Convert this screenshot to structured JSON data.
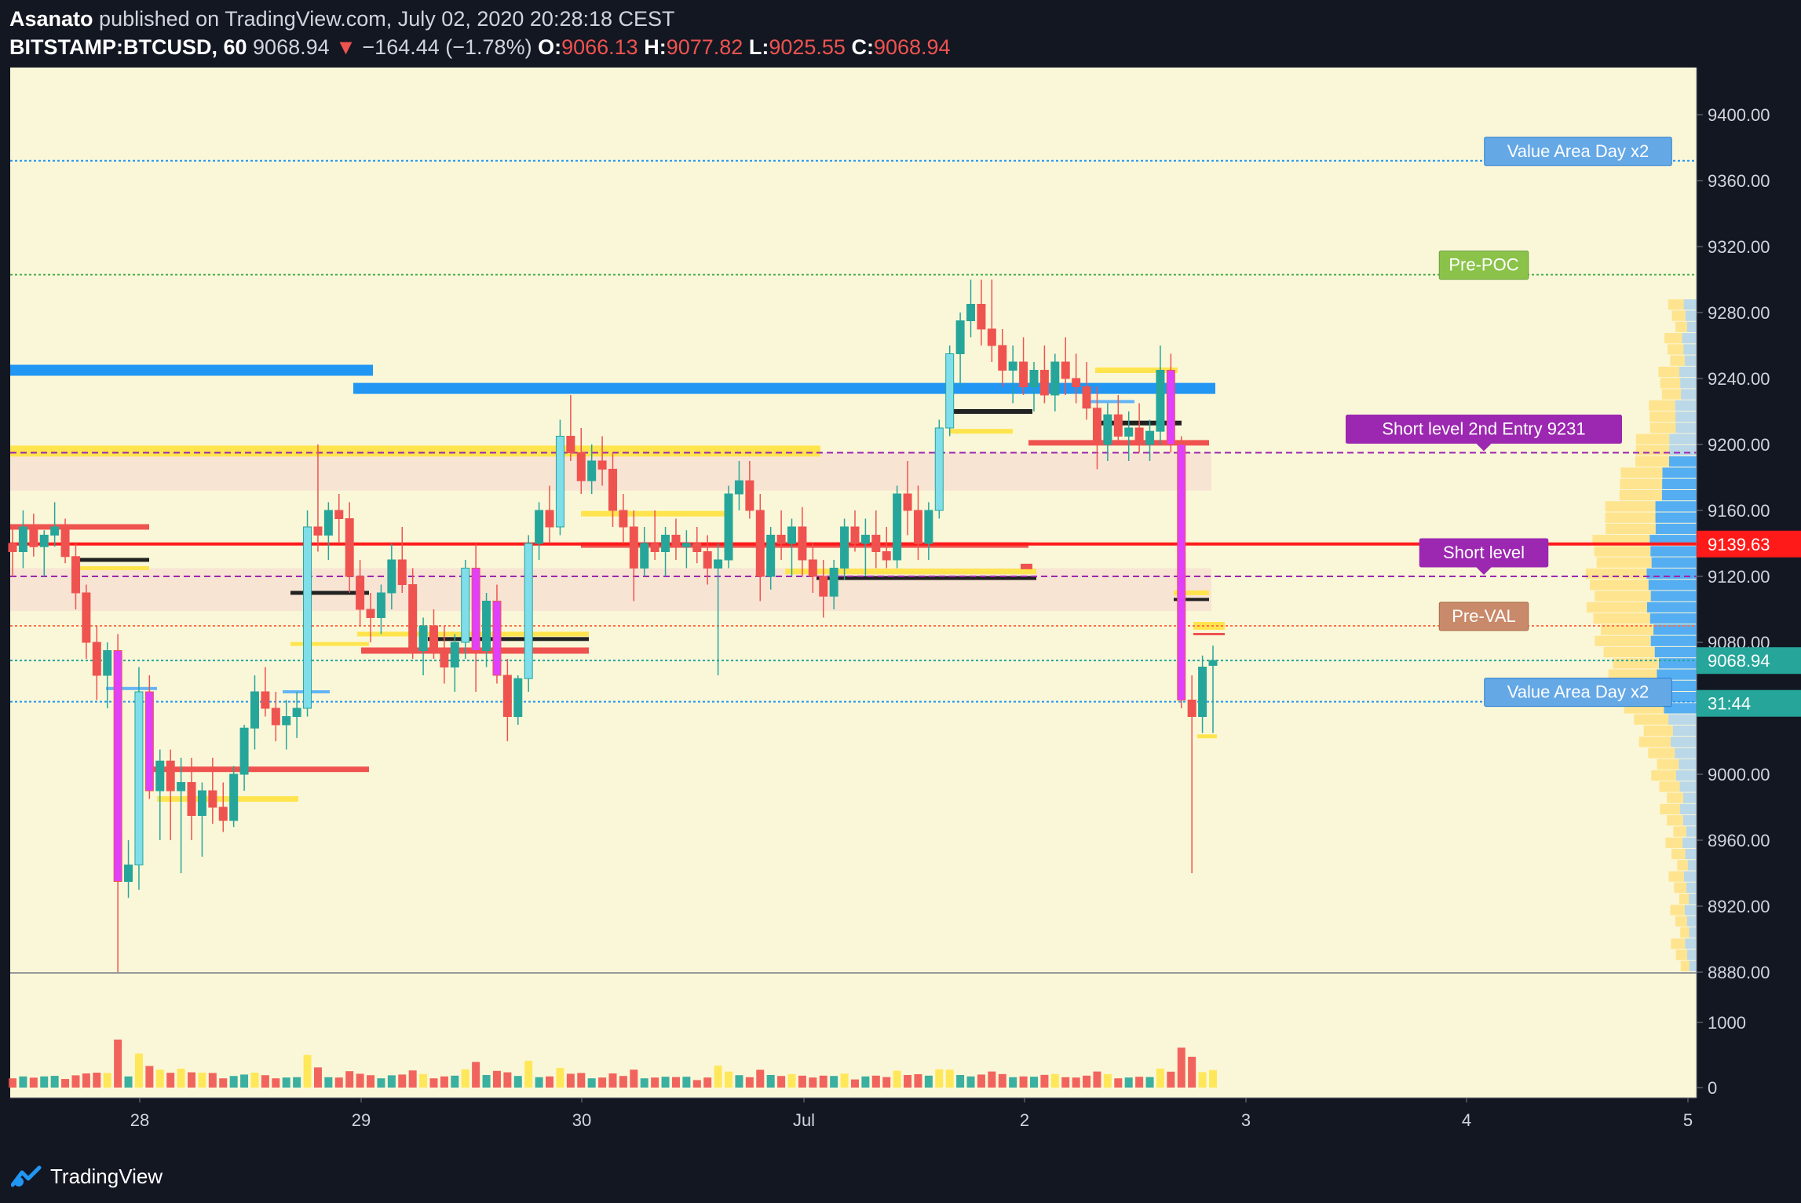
{
  "header": {
    "author": "Asanato",
    "published": "published on TradingView.com, July 02, 2020 20:28:18 CEST",
    "symbol": "BITSTAMP:BTCUSD, 60",
    "last": "9068.94",
    "change": "−164.44 (−1.78%)",
    "o_label": "O:",
    "o_val": "9066.13",
    "h_label": "H:",
    "h_val": "9077.82",
    "l_label": "L:",
    "l_val": "9025.55",
    "c_label": "C:",
    "c_val": "9068.94"
  },
  "footer": {
    "brand": "TradingView"
  },
  "colors": {
    "background": "#faf7d8",
    "up": "#26a69a",
    "up_light": "#80deea",
    "down": "#ef5350",
    "signal_pink": "#e040fb",
    "signal_yellow": "#ffe44d",
    "blue_zone": "#2196f3",
    "purple": "#9c27b0",
    "red_line": "#ff1a1a"
  },
  "chart_data": {
    "type": "candlestick",
    "timeframe": "60",
    "x_tick_labels": [
      "28",
      "29",
      "30",
      "Jul",
      "2",
      "3",
      "4",
      "5"
    ],
    "price_ticks": [
      "9400.00",
      "9360.00",
      "9320.00",
      "9280.00",
      "9240.00",
      "9200.00",
      "9160.00",
      "9120.00",
      "9080.00",
      "9040.00",
      "9000.00",
      "8960.00",
      "8920.00",
      "8880.00"
    ],
    "ylim": [
      8880,
      9420
    ],
    "volume_ticks": [
      "1000",
      "0"
    ],
    "price_badges": [
      {
        "text": "9139.63",
        "value": 9139.63,
        "color": "#ff1a1a"
      },
      {
        "text": "9068.94",
        "value": 9068.94,
        "color": "#26a69a"
      },
      {
        "text": "31:44",
        "value": 9043,
        "color": "#26a69a"
      }
    ],
    "horizontal_lines": [
      {
        "price": 9372,
        "style": "dotted",
        "color": "#2196f3",
        "label": "Value Area Day x2"
      },
      {
        "price": 9303,
        "style": "dotted",
        "color": "#4caf50",
        "label": "Pre-POC"
      },
      {
        "price": 9195,
        "style": "dashed",
        "color": "#9c27b0",
        "label": "Short level 2nd Entry 9231"
      },
      {
        "price": 9139.63,
        "style": "solid",
        "color": "#ff1a1a",
        "label": "Short level"
      },
      {
        "price": 9120,
        "style": "dashed",
        "color": "#9c27b0",
        "label": ""
      },
      {
        "price": 9090,
        "style": "dotted",
        "color": "#ff7043",
        "label": "Pre-VAL"
      },
      {
        "price": 9069,
        "style": "dotted",
        "color": "#26a69a",
        "label": ""
      },
      {
        "price": 9044,
        "style": "dotted",
        "color": "#2196f3",
        "label": "Value Area Day x2"
      }
    ],
    "candles": [
      [
        9140,
        9150,
        9120,
        9135
      ],
      [
        9135,
        9160,
        9125,
        9150
      ],
      [
        9150,
        9158,
        9132,
        9138
      ],
      [
        9138,
        9148,
        9120,
        9145
      ],
      [
        9145,
        9165,
        9138,
        9150
      ],
      [
        9150,
        9155,
        9128,
        9132
      ],
      [
        9132,
        9140,
        9100,
        9110
      ],
      [
        9110,
        9115,
        9070,
        9080
      ],
      [
        9080,
        9090,
        9045,
        9060
      ],
      [
        9060,
        9080,
        9040,
        9075
      ],
      [
        9075,
        9085,
        8880,
        8935
      ],
      [
        8935,
        8960,
        8925,
        8945
      ],
      [
        8945,
        9065,
        8930,
        9050
      ],
      [
        9050,
        9060,
        8985,
        8990
      ],
      [
        8990,
        9015,
        8960,
        9008
      ],
      [
        9008,
        9015,
        8960,
        8990
      ],
      [
        8990,
        9010,
        8940,
        8995
      ],
      [
        8995,
        9010,
        8960,
        8975
      ],
      [
        8975,
        8995,
        8950,
        8990
      ],
      [
        8990,
        9010,
        8970,
        8980
      ],
      [
        8980,
        8995,
        8965,
        8972
      ],
      [
        8972,
        9005,
        8968,
        9000
      ],
      [
        9000,
        9030,
        8990,
        9028
      ],
      [
        9028,
        9060,
        9015,
        9050
      ],
      [
        9050,
        9065,
        9035,
        9040
      ],
      [
        9040,
        9050,
        9020,
        9030
      ],
      [
        9030,
        9045,
        9015,
        9035
      ],
      [
        9035,
        9050,
        9022,
        9040
      ],
      [
        9040,
        9160,
        9035,
        9150
      ],
      [
        9150,
        9200,
        9135,
        9145
      ],
      [
        9145,
        9165,
        9130,
        9160
      ],
      [
        9160,
        9170,
        9140,
        9155
      ],
      [
        9155,
        9165,
        9110,
        9120
      ],
      [
        9120,
        9130,
        9090,
        9100
      ],
      [
        9100,
        9110,
        9080,
        9095
      ],
      [
        9095,
        9115,
        9085,
        9110
      ],
      [
        9110,
        9140,
        9100,
        9130
      ],
      [
        9130,
        9150,
        9110,
        9115
      ],
      [
        9115,
        9125,
        9070,
        9075
      ],
      [
        9075,
        9095,
        9060,
        9090
      ],
      [
        9090,
        9100,
        9070,
        9075
      ],
      [
        9075,
        9090,
        9055,
        9065
      ],
      [
        9065,
        9085,
        9050,
        9080
      ],
      [
        9080,
        9130,
        9070,
        9125
      ],
      [
        9125,
        9140,
        9050,
        9075
      ],
      [
        9075,
        9110,
        9065,
        9105
      ],
      [
        9105,
        9115,
        9055,
        9060
      ],
      [
        9060,
        9070,
        9020,
        9035
      ],
      [
        9035,
        9060,
        9030,
        9058
      ],
      [
        9058,
        9145,
        9050,
        9140
      ],
      [
        9140,
        9165,
        9130,
        9160
      ],
      [
        9160,
        9175,
        9140,
        9150
      ],
      [
        9150,
        9215,
        9145,
        9205
      ],
      [
        9205,
        9230,
        9190,
        9195
      ],
      [
        9195,
        9210,
        9170,
        9178
      ],
      [
        9178,
        9200,
        9170,
        9190
      ],
      [
        9190,
        9205,
        9175,
        9185
      ],
      [
        9185,
        9195,
        9150,
        9160
      ],
      [
        9160,
        9170,
        9140,
        9150
      ],
      [
        9150,
        9160,
        9105,
        9125
      ],
      [
        9125,
        9150,
        9120,
        9140
      ],
      [
        9140,
        9160,
        9130,
        9135
      ],
      [
        9135,
        9150,
        9120,
        9145
      ],
      [
        9145,
        9155,
        9130,
        9138
      ],
      [
        9138,
        9148,
        9125,
        9140
      ],
      [
        9140,
        9150,
        9128,
        9135
      ],
      [
        9135,
        9145,
        9115,
        9125
      ],
      [
        9125,
        9140,
        9060,
        9130
      ],
      [
        9130,
        9175,
        9125,
        9170
      ],
      [
        9170,
        9190,
        9160,
        9178
      ],
      [
        9178,
        9190,
        9155,
        9160
      ],
      [
        9160,
        9170,
        9105,
        9120
      ],
      [
        9120,
        9150,
        9112,
        9145
      ],
      [
        9145,
        9160,
        9130,
        9140
      ],
      [
        9140,
        9155,
        9120,
        9150
      ],
      [
        9150,
        9162,
        9120,
        9130
      ],
      [
        9130,
        9140,
        9110,
        9120
      ],
      [
        9120,
        9130,
        9095,
        9108
      ],
      [
        9108,
        9130,
        9100,
        9125
      ],
      [
        9125,
        9155,
        9118,
        9150
      ],
      [
        9150,
        9160,
        9135,
        9140
      ],
      [
        9140,
        9155,
        9120,
        9145
      ],
      [
        9145,
        9160,
        9125,
        9135
      ],
      [
        9135,
        9150,
        9125,
        9130
      ],
      [
        9130,
        9175,
        9125,
        9170
      ],
      [
        9170,
        9190,
        9145,
        9160
      ],
      [
        9160,
        9175,
        9130,
        9140
      ],
      [
        9140,
        9165,
        9130,
        9160
      ],
      [
        9160,
        9215,
        9155,
        9210
      ],
      [
        9210,
        9260,
        9205,
        9255
      ],
      [
        9255,
        9280,
        9235,
        9275
      ],
      [
        9275,
        9300,
        9265,
        9285
      ],
      [
        9285,
        9300,
        9260,
        9270
      ],
      [
        9270,
        9300,
        9250,
        9260
      ],
      [
        9260,
        9270,
        9235,
        9245
      ],
      [
        9245,
        9260,
        9225,
        9250
      ],
      [
        9250,
        9265,
        9230,
        9235
      ],
      [
        9235,
        9250,
        9220,
        9245
      ],
      [
        9245,
        9260,
        9225,
        9230
      ],
      [
        9230,
        9255,
        9220,
        9250
      ],
      [
        9250,
        9265,
        9230,
        9240
      ],
      [
        9240,
        9255,
        9225,
        9235
      ],
      [
        9235,
        9250,
        9215,
        9222
      ],
      [
        9222,
        9235,
        9185,
        9200
      ],
      [
        9200,
        9225,
        9190,
        9218
      ],
      [
        9218,
        9230,
        9200,
        9205
      ],
      [
        9205,
        9220,
        9190,
        9210
      ],
      [
        9210,
        9225,
        9195,
        9200
      ],
      [
        9200,
        9215,
        9190,
        9208
      ],
      [
        9208,
        9260,
        9200,
        9245
      ],
      [
        9245,
        9255,
        9195,
        9200
      ],
      [
        9200,
        9205,
        9040,
        9045
      ],
      [
        9045,
        9060,
        8940,
        9035
      ],
      [
        9035,
        9072,
        9025,
        9065
      ],
      [
        9066,
        9078,
        9025,
        9069
      ]
    ]
  }
}
